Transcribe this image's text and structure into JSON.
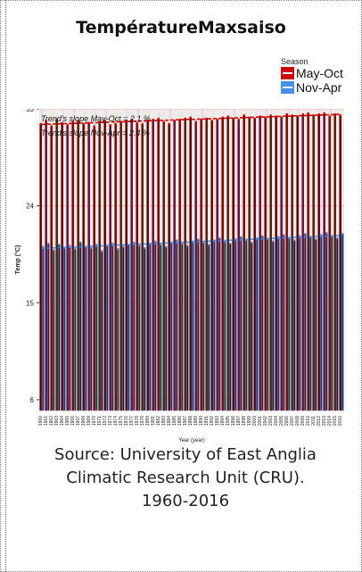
{
  "title": "TempératureMaxsaiso",
  "legend": {
    "title": "Season",
    "items": [
      {
        "label": "May-Oct",
        "color": "#cc0000"
      },
      {
        "label": "Nov-Apr",
        "color": "#4a90e2"
      }
    ]
  },
  "source": {
    "line1": "Source: University of East Anglia",
    "line2": "Climatic Research Unit (CRU).",
    "line3": "1960-2016"
  },
  "chart_data": {
    "type": "bar",
    "annotations": [
      "Trend's slope May-Oct = 2.1 %",
      "Trend's slope Nov-Apr = 2.4 %"
    ],
    "xlabel": "Year (year)",
    "ylabel": "Temp (°C)",
    "ylim": [
      5,
      33
    ],
    "yticks": [
      6,
      15,
      24,
      33
    ],
    "x": [
      1960,
      1961,
      1962,
      1963,
      1964,
      1965,
      1966,
      1967,
      1968,
      1969,
      1970,
      1971,
      1972,
      1973,
      1974,
      1975,
      1976,
      1977,
      1978,
      1979,
      1980,
      1981,
      1982,
      1983,
      1984,
      1985,
      1986,
      1987,
      1988,
      1989,
      1990,
      1991,
      1992,
      1993,
      1994,
      1995,
      1996,
      1997,
      1998,
      1999,
      2000,
      2001,
      2002,
      2003,
      2004,
      2005,
      2006,
      2007,
      2008,
      2009,
      2010,
      2011,
      2012,
      2013,
      2014,
      2015,
      2016
    ],
    "series": [
      {
        "name": "May-Oct",
        "color": "#cc0000",
        "values": [
          31.6,
          31.9,
          31.4,
          32.0,
          31.7,
          31.5,
          31.8,
          31.9,
          31.6,
          31.7,
          31.4,
          31.8,
          31.9,
          31.5,
          31.6,
          31.8,
          31.9,
          32.0,
          31.7,
          31.6,
          31.9,
          32.0,
          32.1,
          31.8,
          31.6,
          31.9,
          32.0,
          32.1,
          32.2,
          31.8,
          32.0,
          32.1,
          31.9,
          32.0,
          32.2,
          32.3,
          32.1,
          32.0,
          32.4,
          32.2,
          32.1,
          32.3,
          32.2,
          32.4,
          32.3,
          32.2,
          32.5,
          32.4,
          32.3,
          32.5,
          32.6,
          32.4,
          32.5,
          32.6,
          32.3,
          32.5,
          32.4
        ]
      },
      {
        "name": "Nov-Apr",
        "color": "#4a90e2",
        "values": [
          20.2,
          20.5,
          19.9,
          20.4,
          20.1,
          20.3,
          20.0,
          20.6,
          20.2,
          20.1,
          20.4,
          19.8,
          20.3,
          20.5,
          20.0,
          20.2,
          20.4,
          20.6,
          20.3,
          20.1,
          20.5,
          20.7,
          20.4,
          20.2,
          20.6,
          20.8,
          20.5,
          20.3,
          20.7,
          20.9,
          20.6,
          20.4,
          20.8,
          21.0,
          20.7,
          20.5,
          20.9,
          21.1,
          20.8,
          20.6,
          21.0,
          21.2,
          20.9,
          20.7,
          21.1,
          21.3,
          21.0,
          20.8,
          21.2,
          21.4,
          21.1,
          20.9,
          21.3,
          21.5,
          21.2,
          21.0,
          21.4
        ]
      }
    ]
  }
}
